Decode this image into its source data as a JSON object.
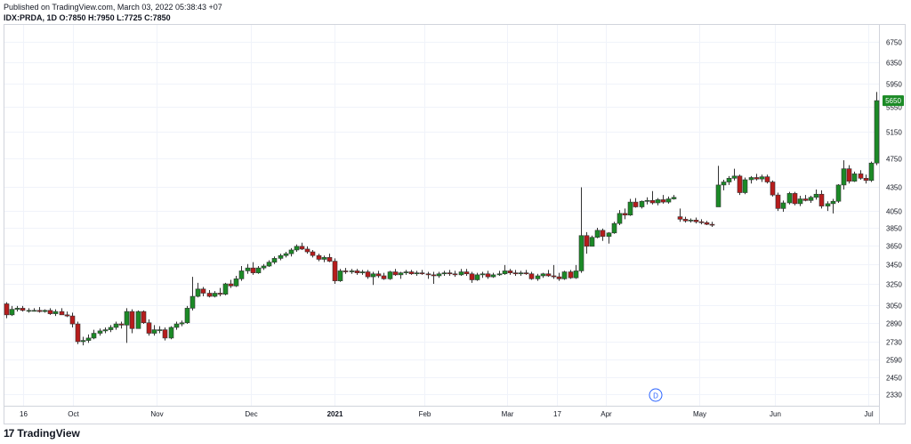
{
  "header": {
    "published": "Published on TradingView.com, March 03, 2022 05:38:43 +07",
    "symbol": "IDX:PRDA, 1D",
    "ohlc_label": "O:7850 H:7950 L:7725 C:7850"
  },
  "footer": {
    "brand": "TradingView",
    "logo_glyph": "17"
  },
  "chart_data": {
    "type": "candlestick",
    "symbol": "IDX:PRDA",
    "interval": "1D",
    "up_color": "#26a69a",
    "up_fill": "#1b8a26",
    "down_color": "#b71c1c",
    "grid": true,
    "y_scale": "log",
    "ylim": [
      2250,
      7100
    ],
    "y_ticks": [
      6750,
      6350,
      5950,
      5550,
      5150,
      4750,
      4350,
      4050,
      3850,
      3650,
      3450,
      3250,
      3050,
      2890,
      2730,
      2590,
      2450,
      2330
    ],
    "last_price_label": "5650",
    "last_price": 5650,
    "x_ticks": [
      "16",
      "Oct",
      "Nov",
      "Dec",
      "2021",
      "Feb",
      "Mar",
      "17",
      "Apr",
      "May",
      "Jun",
      "Jul"
    ],
    "dividend_marker": "D",
    "candles": [
      [
        3060,
        3075,
        2930,
        2960
      ],
      [
        2960,
        3040,
        2950,
        3010
      ],
      [
        3010,
        3040,
        2990,
        3020
      ],
      [
        3020,
        3040,
        2990,
        3000
      ],
      [
        3000,
        3020,
        2980,
        3000
      ],
      [
        3000,
        3020,
        2990,
        3000
      ],
      [
        3000,
        3030,
        2980,
        2990
      ],
      [
        2990,
        3010,
        2980,
        3000
      ],
      [
        3000,
        3020,
        2960,
        2970
      ],
      [
        2970,
        3010,
        2950,
        2990
      ],
      [
        2990,
        3020,
        2970,
        2960
      ],
      [
        2960,
        2990,
        2940,
        2950
      ],
      [
        2950,
        2980,
        2850,
        2880
      ],
      [
        2880,
        2900,
        2710,
        2730
      ],
      [
        2730,
        2770,
        2700,
        2740
      ],
      [
        2740,
        2790,
        2720,
        2760
      ],
      [
        2760,
        2830,
        2750,
        2800
      ],
      [
        2800,
        2840,
        2780,
        2820
      ],
      [
        2820,
        2850,
        2800,
        2830
      ],
      [
        2830,
        2870,
        2810,
        2850
      ],
      [
        2850,
        2900,
        2830,
        2880
      ],
      [
        2880,
        2900,
        2840,
        2870
      ],
      [
        2870,
        3020,
        2720,
        2990
      ],
      [
        2990,
        3010,
        2800,
        2840
      ],
      [
        2840,
        3000,
        2840,
        2990
      ],
      [
        2990,
        3000,
        2880,
        2890
      ],
      [
        2890,
        2920,
        2780,
        2800
      ],
      [
        2800,
        2870,
        2780,
        2830
      ],
      [
        2830,
        2860,
        2800,
        2830
      ],
      [
        2830,
        2850,
        2740,
        2760
      ],
      [
        2760,
        2860,
        2750,
        2850
      ],
      [
        2850,
        2900,
        2830,
        2880
      ],
      [
        2880,
        2910,
        2860,
        2890
      ],
      [
        2890,
        3040,
        2880,
        3020
      ],
      [
        3020,
        3320,
        3000,
        3130
      ],
      [
        3130,
        3260,
        3120,
        3200
      ],
      [
        3200,
        3220,
        3130,
        3160
      ],
      [
        3160,
        3190,
        3120,
        3130
      ],
      [
        3130,
        3180,
        3120,
        3160
      ],
      [
        3160,
        3210,
        3130,
        3150
      ],
      [
        3150,
        3260,
        3140,
        3250
      ],
      [
        3250,
        3290,
        3210,
        3230
      ],
      [
        3230,
        3330,
        3220,
        3300
      ],
      [
        3300,
        3430,
        3280,
        3380
      ],
      [
        3380,
        3450,
        3350,
        3410
      ],
      [
        3410,
        3470,
        3340,
        3360
      ],
      [
        3360,
        3430,
        3350,
        3410
      ],
      [
        3410,
        3450,
        3390,
        3430
      ],
      [
        3430,
        3490,
        3420,
        3470
      ],
      [
        3470,
        3530,
        3450,
        3510
      ],
      [
        3510,
        3560,
        3490,
        3540
      ],
      [
        3540,
        3580,
        3520,
        3560
      ],
      [
        3560,
        3620,
        3530,
        3600
      ],
      [
        3600,
        3660,
        3580,
        3640
      ],
      [
        3640,
        3680,
        3600,
        3610
      ],
      [
        3610,
        3640,
        3560,
        3580
      ],
      [
        3580,
        3600,
        3520,
        3540
      ],
      [
        3540,
        3560,
        3480,
        3500
      ],
      [
        3500,
        3540,
        3470,
        3520
      ],
      [
        3520,
        3560,
        3470,
        3480
      ],
      [
        3480,
        3510,
        3250,
        3280
      ],
      [
        3280,
        3400,
        3270,
        3380
      ],
      [
        3380,
        3410,
        3350,
        3370
      ],
      [
        3370,
        3400,
        3350,
        3380
      ],
      [
        3380,
        3400,
        3340,
        3360
      ],
      [
        3360,
        3390,
        3340,
        3370
      ],
      [
        3370,
        3390,
        3300,
        3320
      ],
      [
        3320,
        3370,
        3240,
        3350
      ],
      [
        3350,
        3380,
        3310,
        3330
      ],
      [
        3330,
        3360,
        3290,
        3300
      ],
      [
        3300,
        3380,
        3290,
        3370
      ],
      [
        3370,
        3400,
        3330,
        3340
      ],
      [
        3340,
        3370,
        3300,
        3360
      ],
      [
        3360,
        3390,
        3340,
        3370
      ],
      [
        3370,
        3390,
        3340,
        3350
      ],
      [
        3350,
        3380,
        3330,
        3360
      ],
      [
        3360,
        3390,
        3340,
        3350
      ],
      [
        3350,
        3370,
        3300,
        3340
      ],
      [
        3340,
        3370,
        3250,
        3330
      ],
      [
        3330,
        3370,
        3310,
        3350
      ],
      [
        3350,
        3380,
        3330,
        3360
      ],
      [
        3360,
        3390,
        3330,
        3350
      ],
      [
        3350,
        3380,
        3320,
        3340
      ],
      [
        3340,
        3400,
        3330,
        3370
      ],
      [
        3370,
        3400,
        3330,
        3350
      ],
      [
        3350,
        3370,
        3260,
        3290
      ],
      [
        3290,
        3360,
        3280,
        3340
      ],
      [
        3340,
        3370,
        3310,
        3350
      ],
      [
        3350,
        3380,
        3300,
        3320
      ],
      [
        3320,
        3360,
        3310,
        3340
      ],
      [
        3340,
        3380,
        3330,
        3350
      ],
      [
        3350,
        3440,
        3340,
        3380
      ],
      [
        3380,
        3400,
        3340,
        3360
      ],
      [
        3360,
        3390,
        3330,
        3350
      ],
      [
        3350,
        3380,
        3330,
        3360
      ],
      [
        3360,
        3390,
        3340,
        3350
      ],
      [
        3350,
        3370,
        3290,
        3300
      ],
      [
        3300,
        3350,
        3280,
        3330
      ],
      [
        3330,
        3360,
        3310,
        3350
      ],
      [
        3350,
        3390,
        3320,
        3330
      ],
      [
        3330,
        3440,
        3300,
        3320
      ],
      [
        3320,
        3360,
        3280,
        3300
      ],
      [
        3300,
        3380,
        3290,
        3370
      ],
      [
        3370,
        3390,
        3300,
        3310
      ],
      [
        3310,
        3440,
        3300,
        3380
      ],
      [
        3380,
        4350,
        3360,
        3760
      ],
      [
        3760,
        3800,
        3560,
        3640
      ],
      [
        3640,
        3760,
        3640,
        3740
      ],
      [
        3740,
        3850,
        3730,
        3820
      ],
      [
        3820,
        3840,
        3700,
        3750
      ],
      [
        3750,
        3800,
        3670,
        3790
      ],
      [
        3790,
        3920,
        3780,
        3900
      ],
      [
        3900,
        4060,
        3880,
        4020
      ],
      [
        4020,
        4080,
        3950,
        4000
      ],
      [
        4000,
        4200,
        3990,
        4160
      ],
      [
        4160,
        4210,
        4090,
        4100
      ],
      [
        4100,
        4180,
        4080,
        4170
      ],
      [
        4170,
        4220,
        4130,
        4180
      ],
      [
        4180,
        4300,
        4130,
        4150
      ],
      [
        4150,
        4210,
        4120,
        4190
      ],
      [
        4190,
        4250,
        4140,
        4160
      ],
      [
        4160,
        4230,
        4140,
        4200
      ],
      [
        4200,
        4250,
        4190,
        4220
      ],
      [
        3980,
        4080,
        3920,
        3950
      ],
      [
        3950,
        3980,
        3910,
        3930
      ],
      [
        3930,
        3960,
        3910,
        3940
      ],
      [
        3940,
        3970,
        3900,
        3920
      ],
      [
        3920,
        3950,
        3890,
        3910
      ],
      [
        3910,
        3930,
        3880,
        3890
      ],
      [
        3890,
        3920,
        3860,
        3880
      ],
      [
        4100,
        4640,
        4100,
        4380
      ],
      [
        4380,
        4450,
        4310,
        4420
      ],
      [
        4420,
        4500,
        4380,
        4470
      ],
      [
        4470,
        4600,
        4440,
        4500
      ],
      [
        4500,
        4520,
        4250,
        4280
      ],
      [
        4280,
        4480,
        4260,
        4450
      ],
      [
        4450,
        4500,
        4400,
        4480
      ],
      [
        4480,
        4530,
        4440,
        4460
      ],
      [
        4460,
        4520,
        4420,
        4490
      ],
      [
        4490,
        4520,
        4400,
        4420
      ],
      [
        4420,
        4440,
        4230,
        4250
      ],
      [
        4250,
        4280,
        4050,
        4080
      ],
      [
        4080,
        4180,
        4040,
        4150
      ],
      [
        4150,
        4290,
        4130,
        4270
      ],
      [
        4270,
        4290,
        4120,
        4140
      ],
      [
        4140,
        4240,
        4110,
        4200
      ],
      [
        4200,
        4250,
        4170,
        4180
      ],
      [
        4180,
        4240,
        4150,
        4220
      ],
      [
        4220,
        4320,
        4190,
        4260
      ],
      [
        4260,
        4310,
        4080,
        4110
      ],
      [
        4110,
        4170,
        4050,
        4140
      ],
      [
        4140,
        4200,
        4020,
        4170
      ],
      [
        4170,
        4390,
        4150,
        4380
      ],
      [
        4380,
        4720,
        4320,
        4600
      ],
      [
        4600,
        4650,
        4400,
        4430
      ],
      [
        4430,
        4560,
        4420,
        4530
      ],
      [
        4530,
        4580,
        4450,
        4470
      ],
      [
        4470,
        4520,
        4400,
        4440
      ],
      [
        4440,
        4700,
        4420,
        4680
      ],
      [
        4680,
        5800,
        4650,
        5650
      ]
    ]
  }
}
